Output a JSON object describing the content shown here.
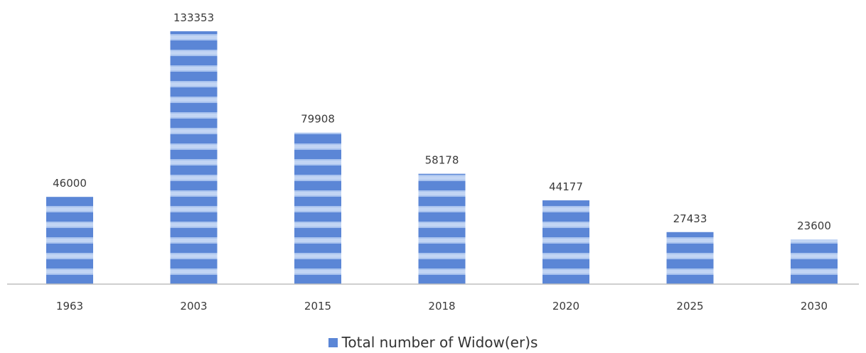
{
  "chart_data": {
    "type": "bar",
    "categories": [
      "1963",
      "2003",
      "2015",
      "2018",
      "2020",
      "2025",
      "2030"
    ],
    "series": [
      {
        "name": "Total number of Widow(er)s",
        "values": [
          46000,
          133353,
          79908,
          58178,
          44177,
          27433,
          23600
        ]
      }
    ],
    "data_labels": [
      "46000",
      "133353",
      "79908",
      "58178",
      "44177",
      "27433",
      "23600"
    ],
    "title": "",
    "xlabel": "",
    "ylabel": "",
    "ylim": [
      0,
      133353
    ],
    "grid": false,
    "legend_position": "bottom",
    "colors": {
      "bar": "#5b86d6",
      "bar_stripe": "#a9c3ee",
      "axis": "#bfbfbf",
      "text": "#3a3a3a"
    }
  }
}
